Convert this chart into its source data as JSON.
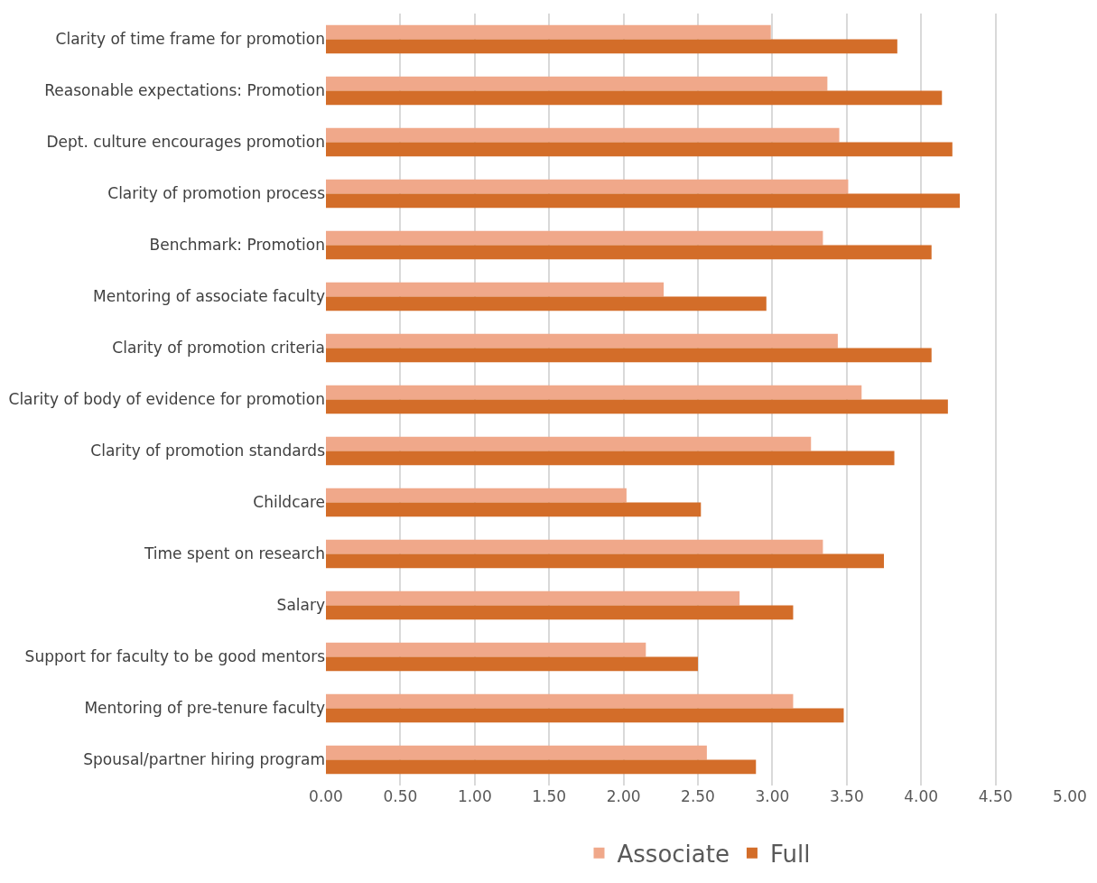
{
  "chart_data": {
    "type": "bar",
    "orientation": "horizontal",
    "categories": [
      "Clarity of time frame for promotion",
      "Reasonable expectations: Promotion",
      "Dept. culture encourages promotion",
      "Clarity of promotion process",
      "Benchmark: Promotion",
      "Mentoring of associate faculty",
      "Clarity of promotion criteria",
      "Clarity of body of evidence for promotion",
      "Clarity of promotion standards",
      "Childcare",
      "Time spent on research",
      "Salary",
      "Support for faculty to be good mentors",
      "Mentoring of pre-tenure faculty",
      "Spousal/partner hiring program"
    ],
    "series": [
      {
        "name": "Associate",
        "color": "#f0a88a",
        "values": [
          2.99,
          3.37,
          3.45,
          3.51,
          3.34,
          2.27,
          3.44,
          3.6,
          3.26,
          2.02,
          3.34,
          2.78,
          2.15,
          3.14,
          2.56
        ]
      },
      {
        "name": "Full",
        "color": "#d36d29",
        "values": [
          3.84,
          4.14,
          4.21,
          4.26,
          4.07,
          2.96,
          4.07,
          4.18,
          3.82,
          2.52,
          3.75,
          3.14,
          2.5,
          3.48,
          2.89
        ]
      }
    ],
    "xlim": [
      0,
      5
    ],
    "xticks": [
      {
        "value": 0,
        "label": "0.00"
      },
      {
        "value": 0.5,
        "label": "0.50"
      },
      {
        "value": 1,
        "label": "1.00"
      },
      {
        "value": 1.5,
        "label": "1.50"
      },
      {
        "value": 2,
        "label": "2.00"
      },
      {
        "value": 2.5,
        "label": "2.50"
      },
      {
        "value": 3,
        "label": "3.00"
      },
      {
        "value": 3.5,
        "label": "3.50"
      },
      {
        "value": 4,
        "label": "4.00"
      },
      {
        "value": 4.5,
        "label": "4.50"
      },
      {
        "value": 5,
        "label": "5.00"
      }
    ],
    "grid": "x",
    "legend": "bottom"
  }
}
